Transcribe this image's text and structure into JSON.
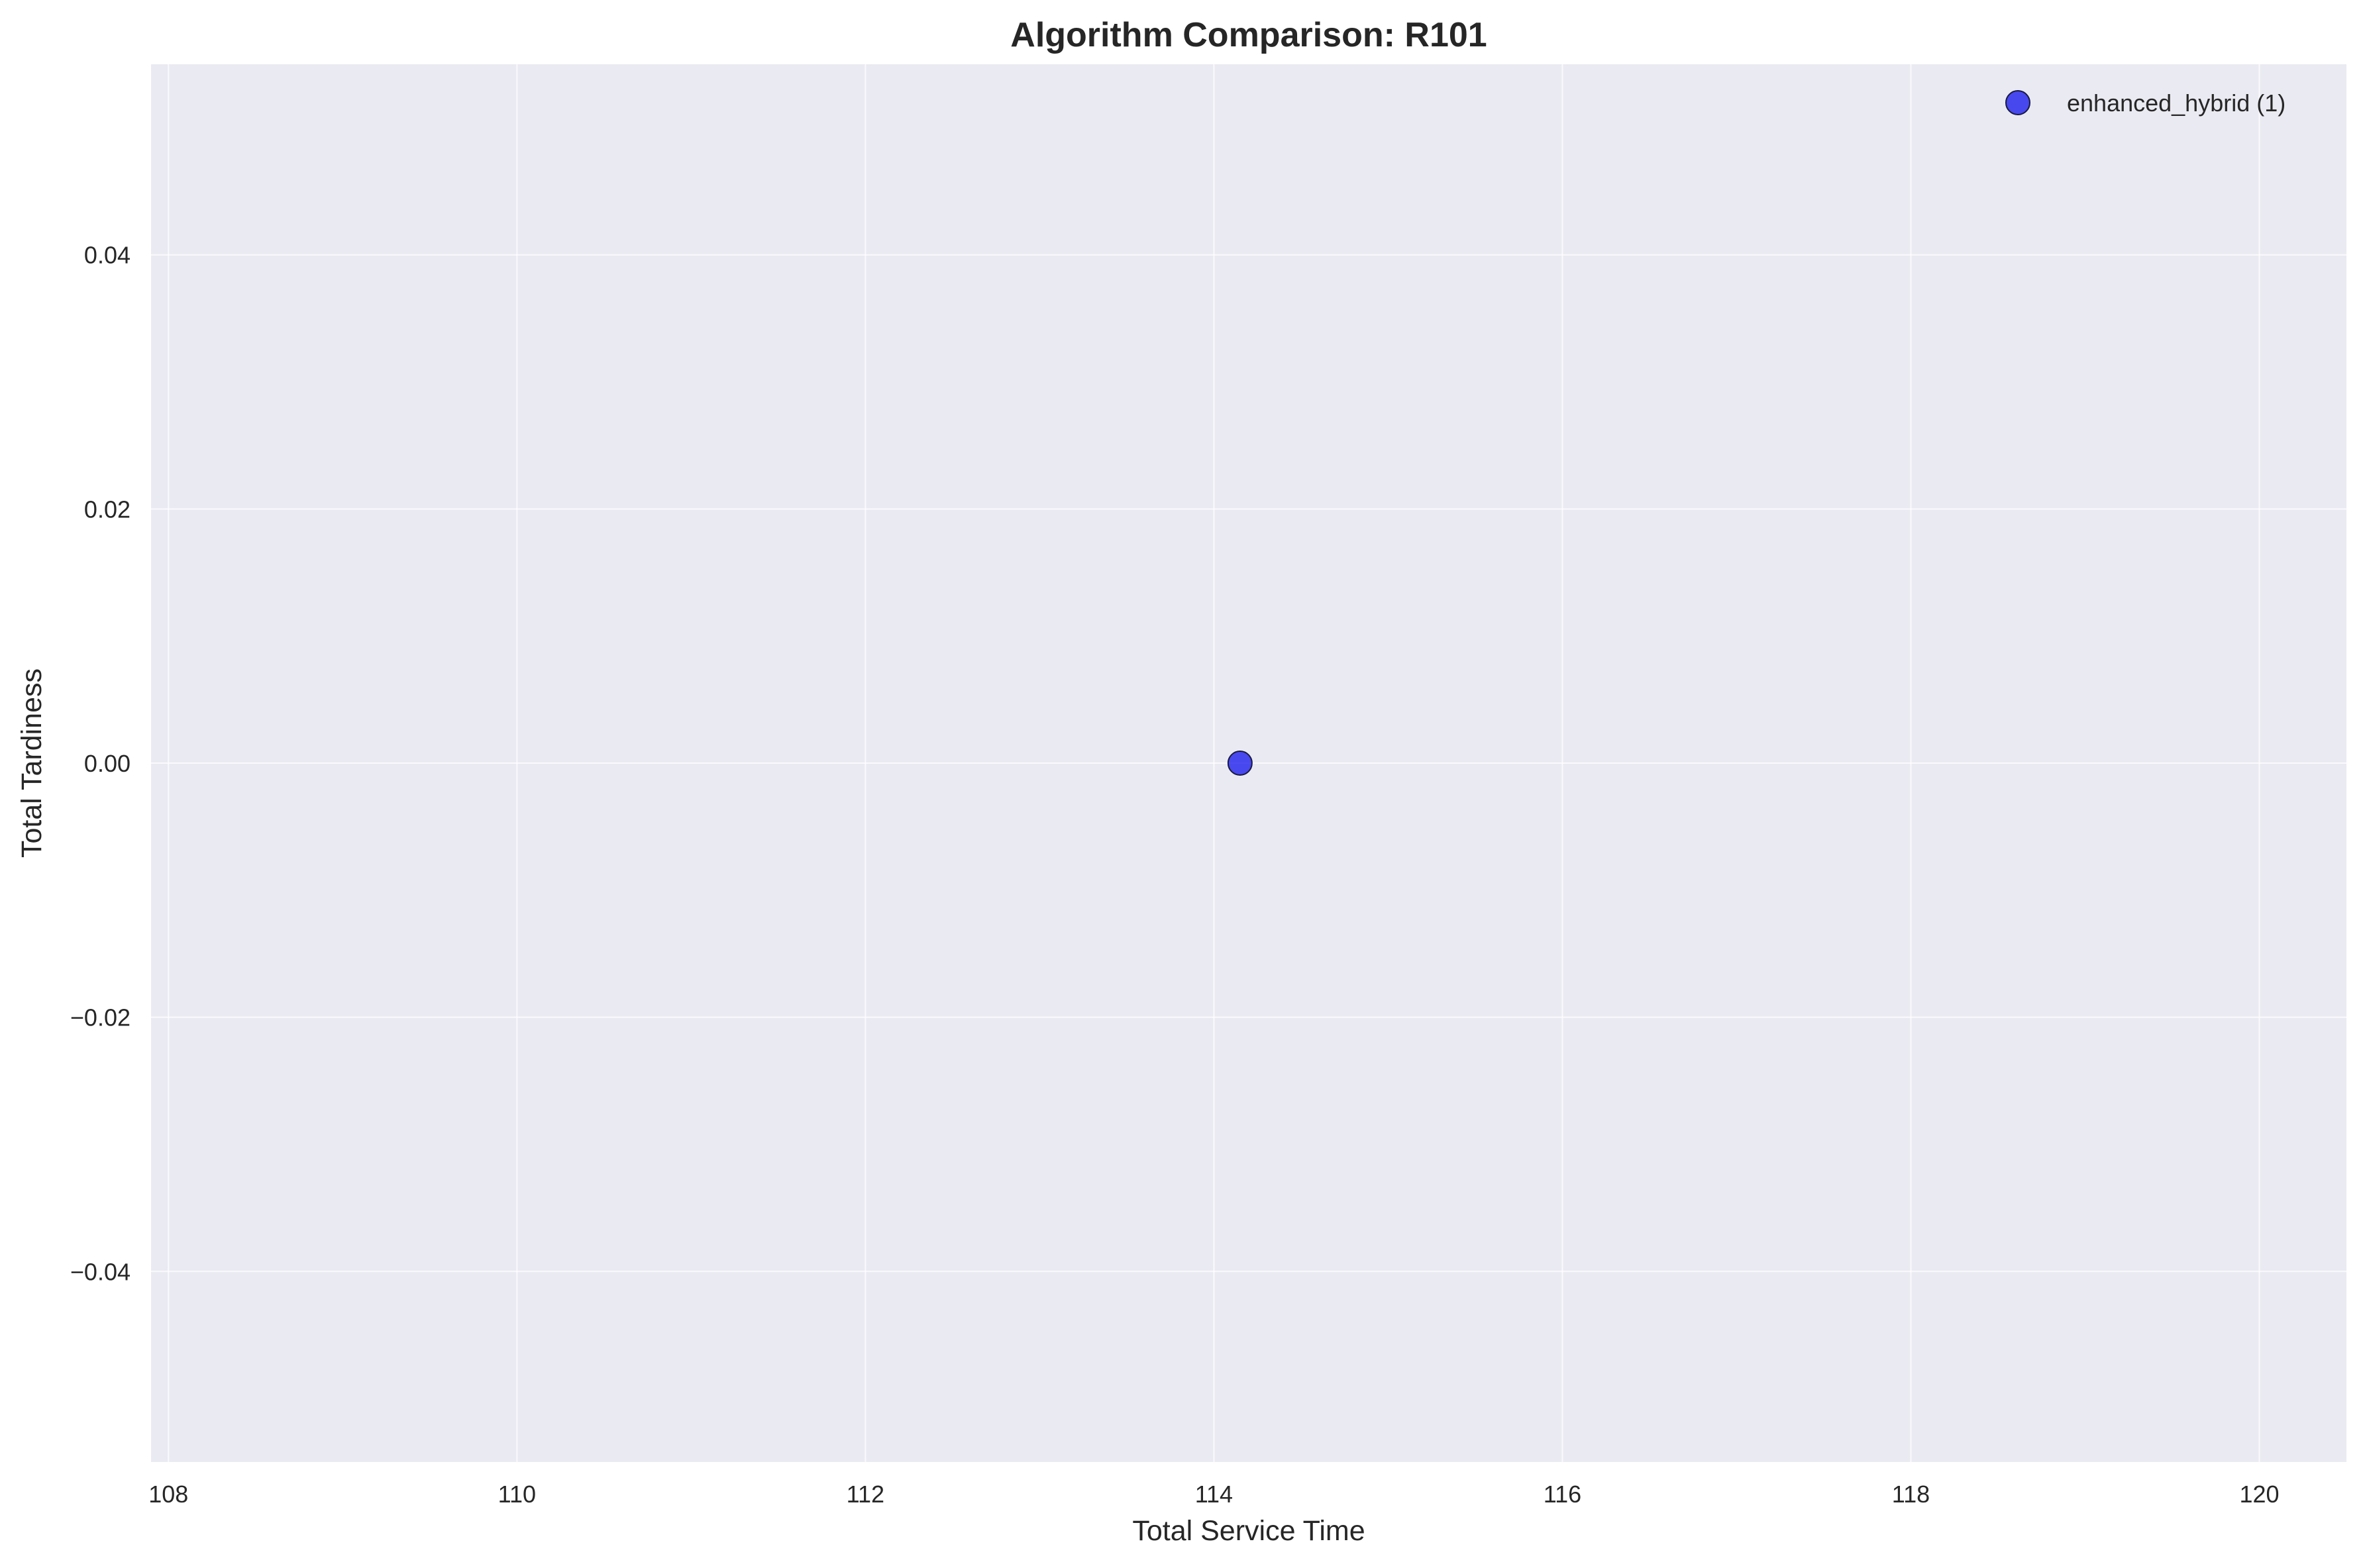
{
  "chart_data": {
    "type": "scatter",
    "title": "Algorithm Comparison: R101",
    "xlabel": "Total Service Time",
    "ylabel": "Total Tardiness",
    "xlim": [
      107.9,
      120.5
    ],
    "ylim": [
      -0.055,
      0.055
    ],
    "xticks": [
      108,
      110,
      112,
      114,
      116,
      118,
      120
    ],
    "xtick_labels": [
      "108",
      "110",
      "112",
      "114",
      "116",
      "118",
      "120"
    ],
    "yticks": [
      0.04,
      0.02,
      0.0,
      -0.02,
      -0.04
    ],
    "ytick_labels": [
      "0.04",
      "0.02",
      "0.00",
      "−0.02",
      "−0.04"
    ],
    "grid": true,
    "legend_position": "top-right",
    "series": [
      {
        "name": "enhanced_hybrid (1)",
        "color": "#2b2bef",
        "points": [
          {
            "x": 114.15,
            "y": 0.0
          }
        ]
      }
    ]
  }
}
